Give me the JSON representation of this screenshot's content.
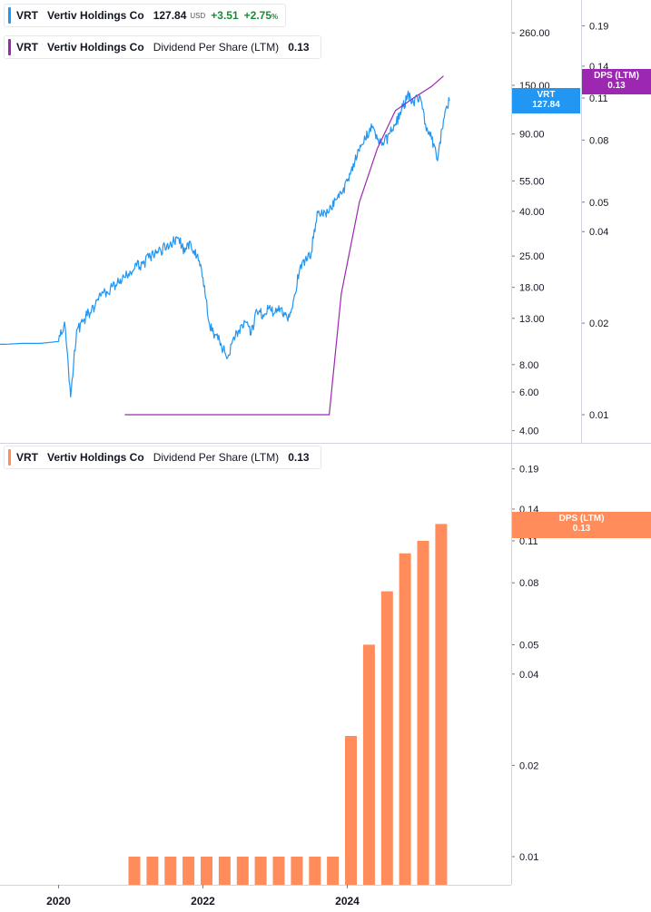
{
  "colors": {
    "price": "#2196f3",
    "dps_line": "#9c27b0",
    "dps_bar": "#ff8c5a",
    "dps_tag_top": "#9c27b0",
    "positive": "#1a8a3a"
  },
  "legend_top": {
    "symbol": "VRT",
    "name": "Vertiv Holdings Co",
    "price": "127.84",
    "currency": "USD",
    "change": "+3.51",
    "change_pct": "+2.75",
    "pct_sign": "%"
  },
  "legend_dps_top": {
    "symbol": "VRT",
    "name": "Vertiv Holdings Co",
    "metric": "Dividend Per Share (LTM)",
    "value": "0.13"
  },
  "legend_dps_bottom": {
    "symbol": "VRT",
    "name": "Vertiv Holdings Co",
    "metric": "Dividend Per Share (LTM)",
    "value": "0.13"
  },
  "tags": {
    "price_top": "VRT",
    "price_bottom": "127.84",
    "dps_top_label": "DPS (LTM)",
    "dps_top_value": "0.13",
    "dps_bottom_label": "DPS (LTM)",
    "dps_bottom_value": "0.13"
  },
  "chart_data": [
    {
      "type": "line",
      "scale": "log",
      "series": [
        {
          "name": "VRT",
          "x": [
            "2019-01",
            "2019-04",
            "2019-07",
            "2019-10",
            "2020-01",
            "2020-02",
            "2020-03",
            "2020-04",
            "2020-05",
            "2020-06",
            "2020-07",
            "2020-08",
            "2020-09",
            "2020-10",
            "2020-11",
            "2020-12",
            "2021-01",
            "2021-02",
            "2021-03",
            "2021-04",
            "2021-05",
            "2021-06",
            "2021-07",
            "2021-08",
            "2021-09",
            "2021-10",
            "2021-11",
            "2021-12",
            "2022-01",
            "2022-02",
            "2022-03",
            "2022-04",
            "2022-05",
            "2022-06",
            "2022-07",
            "2022-08",
            "2022-09",
            "2022-10",
            "2022-11",
            "2022-12",
            "2023-01",
            "2023-02",
            "2023-03",
            "2023-04",
            "2023-05",
            "2023-06",
            "2023-07",
            "2023-08",
            "2023-09",
            "2023-10",
            "2023-11",
            "2023-12",
            "2024-01",
            "2024-02",
            "2024-03",
            "2024-04",
            "2024-05",
            "2024-06",
            "2024-07",
            "2024-08",
            "2024-09",
            "2024-10",
            "2024-11",
            "2024-12",
            "2025-01",
            "2025-02",
            "2025-03",
            "2025-04",
            "2025-05",
            "2025-06"
          ],
          "values": [
            9.9,
            9.9,
            10.0,
            10.0,
            10.2,
            12.5,
            5.7,
            11.5,
            12.5,
            13.8,
            14.6,
            16.4,
            17.2,
            18.2,
            19.0,
            20.0,
            21.0,
            22.5,
            23.0,
            24.5,
            25.5,
            26.5,
            28.0,
            29.0,
            30.0,
            26.0,
            28.5,
            25.0,
            20.0,
            12.5,
            11.0,
            10.0,
            8.5,
            10.5,
            11.5,
            12.5,
            11.0,
            14.0,
            13.5,
            14.5,
            13.8,
            14.5,
            13.0,
            15.5,
            21.0,
            24.0,
            26.0,
            40.0,
            38.0,
            40.0,
            45.0,
            48.0,
            55.0,
            66.0,
            75.0,
            85.0,
            100.0,
            85.0,
            80.0,
            90.0,
            100.0,
            115.0,
            135.0,
            125.0,
            135.0,
            100.0,
            85.0,
            68.0,
            105.0,
            127.84
          ]
        },
        {
          "name": "Dividend Per Share (LTM)",
          "x": [
            "2020-12",
            "2023-10",
            "2023-12",
            "2024-03",
            "2024-06",
            "2024-09",
            "2024-12",
            "2025-03",
            "2025-05"
          ],
          "values": [
            0.01,
            0.01,
            0.025,
            0.05,
            0.075,
            0.1,
            0.11,
            0.12,
            0.13
          ]
        }
      ],
      "y_ticks": [
        "260.00",
        "150.00",
        "90.00",
        "55.00",
        "40.00",
        "25.00",
        "18.00",
        "13.00",
        "8.00",
        "6.00",
        "4.00"
      ],
      "y_ticks_secondary": [
        "0.19",
        "0.14",
        "0.11",
        "0.08",
        "0.05",
        "0.04",
        "0.02",
        "0.01"
      ]
    },
    {
      "type": "bar",
      "scale": "log",
      "series": [
        {
          "name": "Dividend Per Share (LTM)",
          "categories": [
            "2021-Q1",
            "2021-Q2",
            "2021-Q3",
            "2021-Q4",
            "2022-Q1",
            "2022-Q2",
            "2022-Q3",
            "2022-Q4",
            "2023-Q1",
            "2023-Q2",
            "2023-Q3",
            "2023-Q4",
            "2024-Q1",
            "2024-Q2",
            "2024-Q3",
            "2024-Q4",
            "2025-Q1",
            "2025-Q2"
          ],
          "values": [
            0.01,
            0.01,
            0.01,
            0.01,
            0.01,
            0.01,
            0.01,
            0.01,
            0.01,
            0.01,
            0.01,
            0.01,
            0.025,
            0.05,
            0.075,
            0.1,
            0.11,
            0.125
          ]
        }
      ],
      "y_ticks": [
        "0.19",
        "0.14",
        "0.11",
        "0.08",
        "0.05",
        "0.04",
        "0.02",
        "0.01"
      ],
      "x_ticks": [
        "2020",
        "2022",
        "2024"
      ]
    }
  ]
}
